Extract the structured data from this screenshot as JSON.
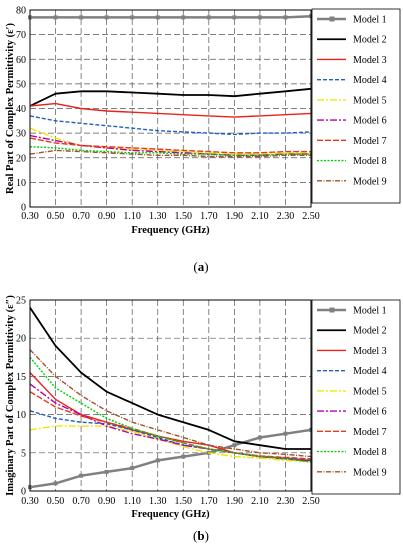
{
  "colors": {
    "Model 1": "#808080",
    "Model 2": "#000000",
    "Model 3": "#e8231a",
    "Model 4": "#1f5fbf",
    "Model 5": "#f2e600",
    "Model 6": "#b000b0",
    "Model 7": "#e83a1a",
    "Model 8": "#00d000",
    "Model 9": "#a0522d"
  },
  "chart_data": [
    {
      "type": "line",
      "panel_label": "a",
      "xlabel": "Frequency (GHz)",
      "ylabel": "Real Part of Complex Permittivity (ε′)",
      "xlim": [
        0.3,
        2.5
      ],
      "ylim": [
        0,
        80
      ],
      "xticks": [
        "0.30",
        "0.50",
        "0.70",
        "0.90",
        "1.10",
        "1.30",
        "1.50",
        "1.70",
        "1.90",
        "2.10",
        "2.30",
        "2.50"
      ],
      "yticks": [
        "0",
        "10",
        "20",
        "30",
        "40",
        "50",
        "60",
        "70",
        "80"
      ],
      "grid": true,
      "legend_position": "right",
      "x": [
        0.3,
        0.5,
        0.7,
        0.9,
        1.1,
        1.3,
        1.5,
        1.7,
        1.9,
        2.1,
        2.3,
        2.5
      ],
      "series": [
        {
          "name": "Model 1",
          "values": [
            77,
            77,
            77,
            77,
            77,
            77,
            77,
            77,
            77,
            77,
            77,
            77.5
          ]
        },
        {
          "name": "Model 2",
          "values": [
            41,
            46,
            47,
            47,
            46.5,
            46,
            45.5,
            45.5,
            45,
            46,
            47,
            48
          ]
        },
        {
          "name": "Model 3",
          "values": [
            41,
            42,
            40,
            39,
            38.5,
            38,
            37.5,
            37,
            36.5,
            37,
            37.5,
            38
          ]
        },
        {
          "name": "Model 4",
          "values": [
            37,
            35,
            34,
            33,
            32,
            31,
            30.5,
            30,
            29.5,
            30,
            30,
            30.5
          ]
        },
        {
          "name": "Model 5",
          "values": [
            32,
            28,
            25,
            24,
            23.5,
            23,
            22.5,
            22,
            21.5,
            21.5,
            22,
            22
          ]
        },
        {
          "name": "Model 6",
          "values": [
            29,
            27,
            25,
            24,
            23,
            22.5,
            22,
            21.5,
            21,
            21,
            21.5,
            21.5
          ]
        },
        {
          "name": "Model 7",
          "values": [
            28,
            26,
            25,
            24.5,
            24,
            23.5,
            23,
            22.5,
            22,
            22,
            22.5,
            22.5
          ]
        },
        {
          "name": "Model 8",
          "values": [
            24.5,
            24,
            23,
            22.5,
            22,
            22,
            21.5,
            21.5,
            21,
            21,
            21.5,
            21.5
          ]
        },
        {
          "name": "Model 9",
          "values": [
            21.5,
            23,
            22.5,
            22,
            21.5,
            21,
            21,
            20.5,
            20.5,
            20.5,
            21,
            21
          ]
        }
      ]
    },
    {
      "type": "line",
      "panel_label": "b",
      "xlabel": "Frequency (GHz)",
      "ylabel": "Imaginary Part of Complex Permittivity (ε″)",
      "xlim": [
        0.3,
        2.5
      ],
      "ylim": [
        0,
        25
      ],
      "xticks": [
        "0.30",
        "0.50",
        "0.70",
        "0.90",
        "1.10",
        "1.30",
        "1.50",
        "1.70",
        "1.90",
        "2.10",
        "2.30",
        "2.50"
      ],
      "yticks": [
        "0",
        "5",
        "10",
        "15",
        "20",
        "25"
      ],
      "grid": true,
      "legend_position": "right",
      "x": [
        0.3,
        0.5,
        0.7,
        0.9,
        1.1,
        1.3,
        1.5,
        1.7,
        1.9,
        2.1,
        2.3,
        2.5
      ],
      "series": [
        {
          "name": "Model 1",
          "values": [
            0.5,
            1.0,
            2.0,
            2.5,
            3.0,
            4.0,
            4.5,
            5.0,
            6.0,
            7.0,
            7.5,
            8.0
          ]
        },
        {
          "name": "Model 2",
          "values": [
            24,
            19,
            15.5,
            13,
            11.5,
            10,
            9,
            8,
            6.5,
            6,
            5.5,
            5.5
          ]
        },
        {
          "name": "Model 3",
          "values": [
            15.5,
            12,
            10,
            9,
            8,
            7.2,
            6.5,
            6,
            5,
            4.5,
            4.3,
            4
          ]
        },
        {
          "name": "Model 4",
          "values": [
            10.5,
            9.5,
            9,
            8.8,
            8,
            7,
            6,
            5.5,
            5,
            4.5,
            4.3,
            4
          ]
        },
        {
          "name": "Model 5",
          "values": [
            8,
            8.5,
            8.5,
            8.5,
            7.8,
            6.8,
            5.8,
            5,
            4.5,
            4.3,
            4,
            3.8
          ]
        },
        {
          "name": "Model 6",
          "values": [
            14,
            11.5,
            10,
            8.5,
            7.5,
            6.8,
            6,
            5.5,
            5,
            4.5,
            4.2,
            3.9
          ]
        },
        {
          "name": "Model 7",
          "values": [
            13,
            11,
            9.8,
            9,
            8.2,
            7.2,
            6.3,
            5.5,
            5,
            4.6,
            4.4,
            4.2
          ]
        },
        {
          "name": "Model 8",
          "values": [
            17.5,
            13.5,
            11.5,
            9.5,
            8.2,
            7.2,
            6.3,
            5.5,
            5,
            4.5,
            4.2,
            3.8
          ]
        },
        {
          "name": "Model 9",
          "values": [
            18.5,
            15,
            12.5,
            10.5,
            9,
            8,
            7,
            6,
            5.5,
            5,
            4.8,
            4.5
          ]
        }
      ]
    }
  ]
}
